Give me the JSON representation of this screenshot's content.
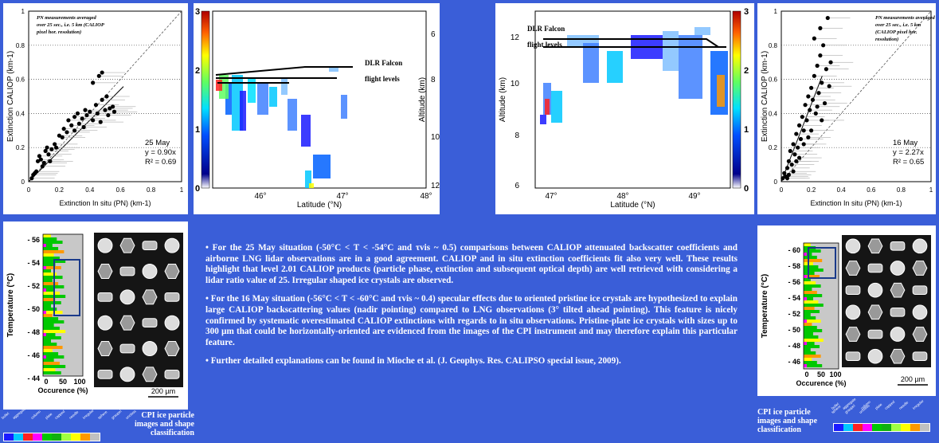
{
  "colors": {
    "background": "#3a5ed8",
    "legend": [
      "#1a1aff",
      "#00c8ff",
      "#ff2020",
      "#ff00ff",
      "#00c800",
      "#10b010",
      "#a0ff40",
      "#ffff00",
      "#ff9900",
      "#c0c0c0"
    ]
  },
  "chart_data": [
    {
      "id": "scatter-25may",
      "type": "scatter",
      "xlabel": "Extinction In situ (PN) (km-1)",
      "ylabel": "Extinction CALIOP (km-1)",
      "xlim": [
        0,
        1
      ],
      "ylim": [
        0,
        1
      ],
      "xticks": [
        "0",
        "0.2",
        "0.4",
        "0.6",
        "0.8",
        "1"
      ],
      "yticks": [
        "0",
        "0.2",
        "0.4",
        "0.6",
        "0.8",
        "1"
      ],
      "annotation": [
        "PN   measurements   averaged",
        "over 25 sec., i.e. 5 km (CALIOP",
        "pixel hor. resolution)"
      ],
      "date": "25 May",
      "fit": "y = 0.90x",
      "r2": "R² = 0.69",
      "slope": 0.9,
      "points": [
        [
          0.02,
          0.02
        ],
        [
          0.03,
          0.04
        ],
        [
          0.04,
          0.05
        ],
        [
          0.05,
          0.06
        ],
        [
          0.06,
          0.12
        ],
        [
          0.07,
          0.15
        ],
        [
          0.08,
          0.13
        ],
        [
          0.09,
          0.09
        ],
        [
          0.1,
          0.11
        ],
        [
          0.11,
          0.18
        ],
        [
          0.12,
          0.2
        ],
        [
          0.13,
          0.16
        ],
        [
          0.14,
          0.12
        ],
        [
          0.15,
          0.19
        ],
        [
          0.17,
          0.22
        ],
        [
          0.18,
          0.2
        ],
        [
          0.2,
          0.27
        ],
        [
          0.22,
          0.26
        ],
        [
          0.23,
          0.31
        ],
        [
          0.25,
          0.29
        ],
        [
          0.26,
          0.36
        ],
        [
          0.28,
          0.33
        ],
        [
          0.3,
          0.38
        ],
        [
          0.32,
          0.4
        ],
        [
          0.33,
          0.34
        ],
        [
          0.35,
          0.37
        ],
        [
          0.37,
          0.42
        ],
        [
          0.38,
          0.39
        ],
        [
          0.4,
          0.41
        ],
        [
          0.42,
          0.36
        ],
        [
          0.44,
          0.45
        ],
        [
          0.45,
          0.4
        ],
        [
          0.47,
          0.35
        ],
        [
          0.48,
          0.48
        ],
        [
          0.5,
          0.42
        ],
        [
          0.52,
          0.39
        ],
        [
          0.53,
          0.43
        ],
        [
          0.55,
          0.44
        ],
        [
          0.56,
          0.41
        ],
        [
          0.42,
          0.58
        ],
        [
          0.46,
          0.62
        ],
        [
          0.48,
          0.64
        ],
        [
          0.51,
          0.5
        ],
        [
          0.3,
          0.3
        ],
        [
          0.36,
          0.32
        ]
      ]
    },
    {
      "id": "lidar-25may",
      "type": "heatmap",
      "xlabel": "Latitude (°N)",
      "ylabel": "Altitude (km)",
      "xticks": [
        "46°",
        "47°",
        "48°"
      ],
      "yticks": [
        "6",
        "8",
        "10",
        "12"
      ],
      "colorbar": [
        "0",
        "1",
        "2",
        "3"
      ],
      "label": [
        "DLR Falcon",
        "flight levels"
      ]
    },
    {
      "id": "lidar-16may",
      "type": "heatmap",
      "xlabel": "Latitude (°N)",
      "ylabel": "Altitude (km)",
      "xticks": [
        "47°",
        "48°",
        "49°"
      ],
      "yticks": [
        "6",
        "8",
        "10",
        "12"
      ],
      "colorbar": [
        "0",
        "1",
        "2",
        "3"
      ],
      "label": [
        "DLR Falcon",
        "flight levels"
      ]
    },
    {
      "id": "scatter-16may",
      "type": "scatter",
      "xlabel": "Extinction In situ (PN) (km-1)",
      "ylabel": "Extinction CALIOP (km-1)",
      "xlim": [
        0,
        1
      ],
      "ylim": [
        0,
        1
      ],
      "xticks": [
        "0",
        "0.2",
        "0.4",
        "0.6",
        "0.8",
        "1"
      ],
      "yticks": [
        "0",
        "0.2",
        "0.4",
        "0.6",
        "0.8",
        "1"
      ],
      "annotation": [
        "PN measurements averaged",
        "over 25 sec., i.e. 5 km",
        "(CALIOP pixel hor.",
        "resolution)"
      ],
      "date": "16 May",
      "fit": "y = 2.27x",
      "r2": "R² = 0.65",
      "slope": 2.27,
      "points": [
        [
          0.01,
          0.02
        ],
        [
          0.02,
          0.05
        ],
        [
          0.03,
          0.03
        ],
        [
          0.04,
          0.08
        ],
        [
          0.05,
          0.12
        ],
        [
          0.06,
          0.18
        ],
        [
          0.07,
          0.1
        ],
        [
          0.08,
          0.22
        ],
        [
          0.09,
          0.16
        ],
        [
          0.1,
          0.28
        ],
        [
          0.11,
          0.2
        ],
        [
          0.12,
          0.33
        ],
        [
          0.13,
          0.25
        ],
        [
          0.14,
          0.38
        ],
        [
          0.15,
          0.3
        ],
        [
          0.16,
          0.45
        ],
        [
          0.17,
          0.36
        ],
        [
          0.18,
          0.5
        ],
        [
          0.19,
          0.42
        ],
        [
          0.2,
          0.55
        ],
        [
          0.21,
          0.48
        ],
        [
          0.22,
          0.62
        ],
        [
          0.23,
          0.4
        ],
        [
          0.24,
          0.68
        ],
        [
          0.25,
          0.52
        ],
        [
          0.26,
          0.74
        ],
        [
          0.27,
          0.58
        ],
        [
          0.28,
          0.8
        ],
        [
          0.29,
          0.46
        ],
        [
          0.3,
          0.66
        ],
        [
          0.22,
          0.84
        ],
        [
          0.26,
          0.9
        ],
        [
          0.31,
          0.96
        ],
        [
          0.2,
          0.3
        ],
        [
          0.18,
          0.26
        ],
        [
          0.15,
          0.22
        ],
        [
          0.24,
          0.44
        ],
        [
          0.27,
          0.36
        ],
        [
          0.32,
          0.56
        ],
        [
          0.33,
          0.7
        ],
        [
          0.12,
          0.14
        ],
        [
          0.1,
          0.12
        ],
        [
          0.08,
          0.06
        ],
        [
          0.05,
          0.04
        ],
        [
          0.04,
          0.02
        ]
      ]
    },
    {
      "id": "occ-25may",
      "type": "bar",
      "xlabel": "Occurence (%)",
      "ylabel": "Temperature (°C)",
      "xticks": [
        "0",
        "50",
        "100"
      ],
      "yticks": [
        "- 56",
        "- 54",
        "- 52",
        "- 50",
        "- 48",
        "- 46",
        "- 44"
      ],
      "scale": "200 µm"
    },
    {
      "id": "occ-16may",
      "type": "bar",
      "xlabel": "Occurence (%)",
      "ylabel": "Temperature (°C)",
      "xticks": [
        "0",
        "50",
        "100"
      ],
      "yticks": [
        "- 60",
        "- 58",
        "- 56",
        "- 54",
        "- 52",
        "- 50",
        "- 48",
        "- 46"
      ],
      "scale": "200 µm"
    }
  ],
  "text": {
    "p1": "• For the 25 May situation (-50°C < T < -54°C and τvis ~ 0.5) comparisons between CALIOP attenuated backscatter coefficients and airborne LNG lidar observations are in a good agreement. CALIOP and in situ extinction coefficients fit also very well. These results highlight that level 2.01 CALIOP products (particle phase, extinction and subsequent optical depth) are well retrieved with considering a lidar ratio value of 25. Irregular shaped ice crystals are observed.",
    "p2": "• For the 16 May situation (-56°C < T < -60°C and τvis ~ 0.4) specular effects due to oriented pristine ice crystals are hypothesized to explain large CALIOP backscattering values (nadir pointing) compared to LNG observations (3° tilted ahead pointing). This feature is nicely confirmed by systematic overestimated CALIOP extinctions with regards to in situ observations.  Pristine-plate ice crystals with sizes up to 300 µm that could be horizontally-oriented are evidenced from the images of the CPI instrument and may therefore explain this particular feature.",
    "p3": "• Further detailed explanations can be found in Mioche et al. (J. Geophys. Res. CALIPSO special issue, 2009)."
  },
  "captions": {
    "left": "CPI ice particle images and shape classification",
    "right": "CPI ice particle images and shape classification"
  },
  "classes": [
    "bullet",
    "aggregate",
    "column",
    "plate",
    "capped",
    "needle",
    "irregular",
    "sphere",
    "graupel",
    "unclass"
  ]
}
